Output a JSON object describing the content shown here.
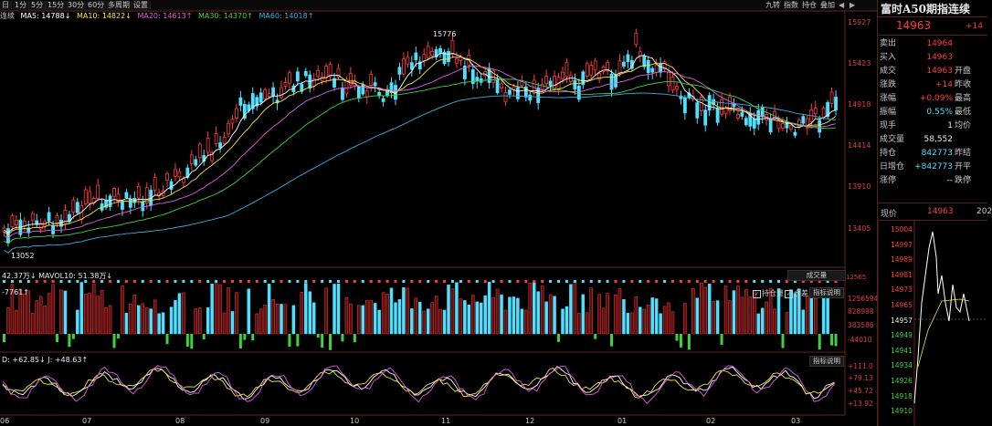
{
  "toolbar": {
    "buttons": [
      "日",
      "1分",
      "5分",
      "15分",
      "30分",
      "60分",
      "多周期",
      "设置"
    ],
    "right_buttons": [
      "九转",
      "指数",
      "持仓",
      "叠加"
    ]
  },
  "ma_line": {
    "prefix": "连续",
    "ma5": "MA5: 14788↓",
    "ma10": "MA10: 14822↓",
    "ma20": "MA20: 14613↑",
    "ma30": "MA30: 14370↑",
    "ma60": "MA60: 14018↑"
  },
  "price_axis": [
    "15927",
    "15423",
    "14918",
    "14414",
    "13910",
    "13405"
  ],
  "annotations": {
    "high": "15776",
    "low": "13052"
  },
  "volume": {
    "header": "42.37万↓  MAVOL10: 51.38万↓",
    "sub": "-7761↑",
    "tab": "成交量",
    "checkbox_oi": "持仓量",
    "checkbox_diff": "仓差",
    "help": "指标说明",
    "axis": [
      "1256594",
      "828998",
      "383586",
      "-44010"
    ],
    "top_cut": "12565"
  },
  "indicator": {
    "header": "D: +62.85↓  J: +48.63↑",
    "help": "指标说明",
    "axis": [
      "+111.0",
      "+79.13",
      "+45.72",
      "+13.92"
    ]
  },
  "x_axis": [
    "06",
    "07",
    "08",
    "09",
    "10",
    "11",
    "12",
    "01",
    "02",
    "03"
  ],
  "quote": {
    "title": "富时A50期指连续",
    "last": "14963",
    "change": "+14",
    "rows": [
      {
        "k": "卖出",
        "v": "14964",
        "k2": ""
      },
      {
        "k": "买入",
        "v": "14963",
        "k2": ""
      },
      {
        "k": "成交",
        "v": "14963",
        "k2": "开盘"
      },
      {
        "k": "涨跌",
        "v": "+14",
        "k2": "昨收"
      },
      {
        "k": "涨幅",
        "v": "+0.09%",
        "k2": "最高"
      },
      {
        "k": "振幅",
        "v": "0.55%",
        "k2": "最低"
      },
      {
        "k": "现手",
        "v": "1",
        "k2": "均价"
      },
      {
        "k": "成交量",
        "v": "58,552",
        "k2": ""
      },
      {
        "k": "持仓",
        "v": "842773",
        "k2": "昨结"
      },
      {
        "k": "日增仓",
        "v": "+842773",
        "k2": "开平"
      },
      {
        "k": "涨停",
        "v": "--",
        "k2": "跌停"
      }
    ]
  },
  "intraday": {
    "label_now": "现价",
    "now": "14963",
    "time": "202",
    "axis": [
      "15004",
      "14997",
      "14989",
      "14981",
      "14973",
      "14965",
      "14957",
      "14949",
      "14941",
      "14934",
      "14926",
      "14918",
      "14910"
    ]
  },
  "colors": {
    "up": "#ff3b3b",
    "down": "#4fe0ff",
    "bg": "#000000",
    "ma5": "#ffffff",
    "ma10": "#f5e342",
    "ma20": "#e05ee0",
    "ma30": "#3fd23f",
    "ma60": "#3ab0e0"
  }
}
